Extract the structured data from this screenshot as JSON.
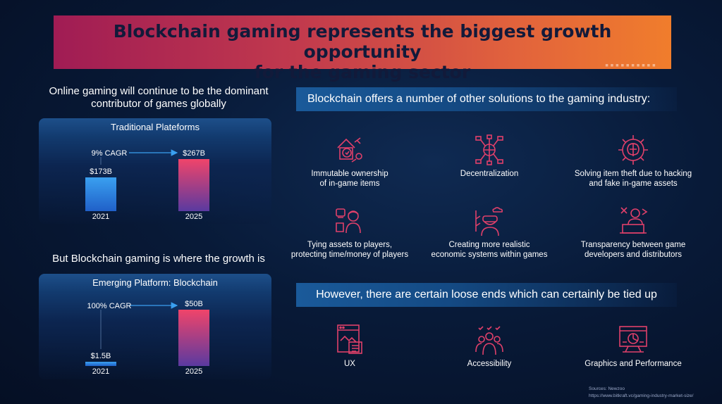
{
  "title": {
    "line1": "Blockchain gaming represents the biggest growth opportunity",
    "line2": "for the gaming sector"
  },
  "left": {
    "heading1_line1": "Online gaming will continue to be the  dominant",
    "heading1_line2": "contributor of games globally",
    "heading2": "But Blockchain gaming is where the growth is"
  },
  "right": {
    "heading1": "Blockchain offers a number of other solutions to the gaming industry:",
    "features": [
      {
        "line1": "Immutable ownership",
        "line2": "of in-game items",
        "icon": "ownership-icon"
      },
      {
        "line1": "Decentralization",
        "line2": "",
        "icon": "network-globe-icon"
      },
      {
        "line1": "Solving item theft due to hacking",
        "line2": "and fake in-game assets",
        "icon": "gear-brain-icon"
      },
      {
        "line1": "Tying assets to players,",
        "line2": "protecting time/money of players",
        "icon": "gamer-icon"
      },
      {
        "line1": "Creating more realistic",
        "line2": "economic systems within games",
        "icon": "vr-headset-icon"
      },
      {
        "line1": "Transparency between game",
        "line2": "developers and distributors",
        "icon": "developer-icon"
      }
    ],
    "heading2": "However, there are certain loose ends which can certainly be tied up",
    "loose_ends": [
      {
        "label": "UX",
        "icon": "ux-icon"
      },
      {
        "label": "Accessibility",
        "icon": "accessibility-icon"
      },
      {
        "label": "Graphics and Performance",
        "icon": "graphics-icon"
      }
    ]
  },
  "sources": {
    "line1": "Sources: Newzoo",
    "line2": "https://www.bitkraft.vc/gaming-industry-market-size/"
  },
  "colors": {
    "title_gradient_start": "#a01c54",
    "title_gradient_end": "#f07d2c",
    "bar_2021": "#2f8fe8",
    "bar_2025_top": "#f0446a",
    "bar_2025_bottom": "#6a3aa0",
    "icon_stroke": "#e0406a"
  },
  "chart_data": [
    {
      "type": "bar",
      "title": "Traditional Plateforms",
      "categories": [
        "2021",
        "2025"
      ],
      "values": [
        173,
        267
      ],
      "value_labels": [
        "$173B",
        "$267B"
      ],
      "unit": "$B",
      "annotation": "9% CAGR"
    },
    {
      "type": "bar",
      "title": "Emerging Platform: Blockchain",
      "categories": [
        "2021",
        "2025"
      ],
      "values": [
        1.5,
        50
      ],
      "value_labels": [
        "$1.5B",
        "$50B"
      ],
      "unit": "$B",
      "annotation": "100% CAGR"
    }
  ]
}
